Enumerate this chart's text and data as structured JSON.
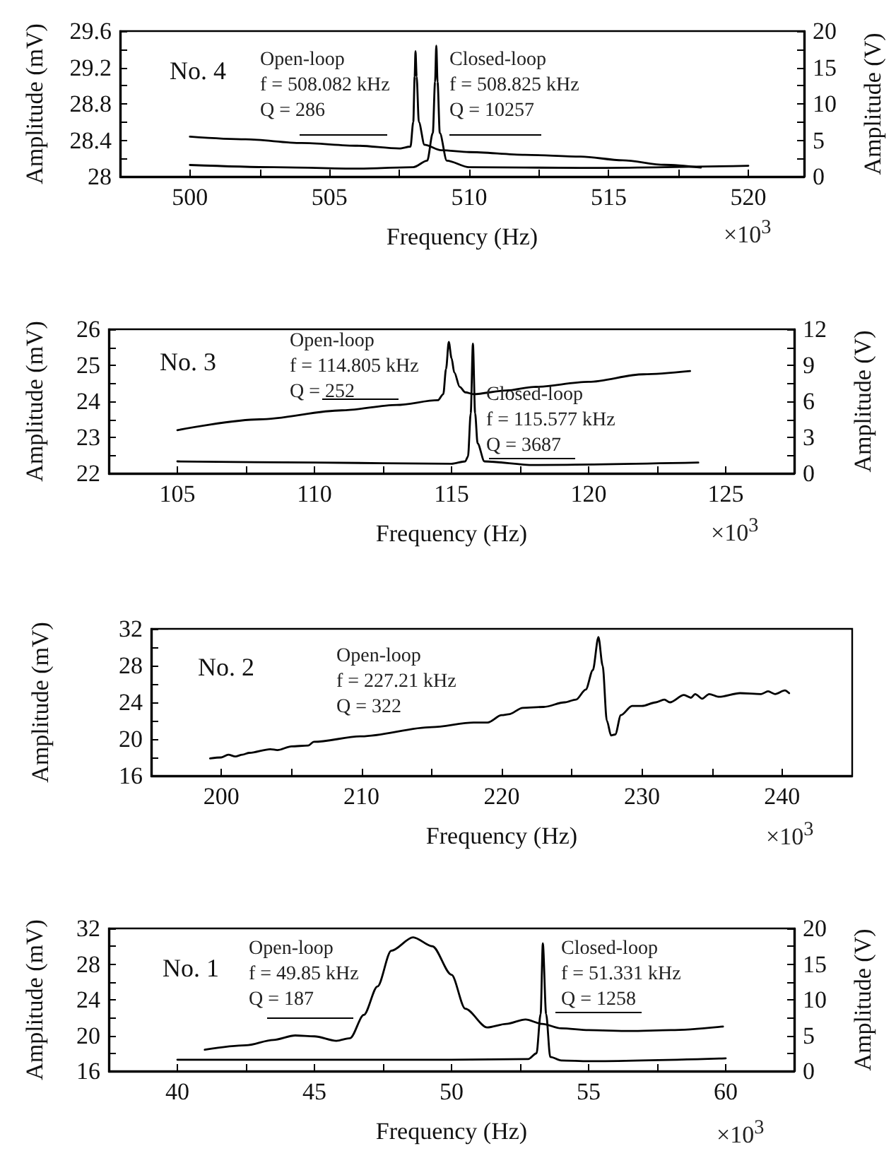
{
  "chart_data": [
    {
      "type": "line",
      "title": "No. 4",
      "xlabel": "Frequency (Hz)",
      "ylabel": "Amplitude (mV)",
      "y2label": "Amplitude (V)",
      "annotations": [
        "Open-loop\nf = 508.082 kHz\nQ = 286",
        "Closed-loop\nf = 508.825 kHz\nQ = 10257",
        "×10$^{3}$"
      ],
      "xlim": [
        497.5,
        522
      ],
      "xticks": [
        500,
        {
          "value": 502.5,
          "label": null
        },
        505,
        {
          "value": 507.5,
          "label": null
        },
        510,
        {
          "value": 512.5,
          "label": null
        },
        515,
        {
          "value": 517.5,
          "label": null
        },
        520
      ],
      "ylim": [
        28,
        29.6
      ],
      "yticks": [
        28,
        {
          "value": 28.2,
          "label": null
        },
        28.4,
        {
          "value": 28.6,
          "label": null
        },
        28.8,
        {
          "value": 29,
          "label": null
        },
        29.2,
        {
          "value": 29.4,
          "label": null
        },
        29.6
      ],
      "y2lim": [
        0,
        20
      ],
      "y2ticks": [
        0,
        {
          "value": 2.5,
          "label": null
        },
        5,
        {
          "value": 7.5,
          "label": null
        },
        10,
        {
          "value": 12.5,
          "label": null
        },
        15,
        {
          "value": 17.5,
          "label": null
        },
        20
      ],
      "series": [
        {
          "color": "#000000",
          "x": [
            500,
            502,
            504,
            506,
            507.5,
            507.9,
            508.0,
            508.05,
            508.08,
            508.12,
            508.2,
            508.4,
            509,
            510,
            512,
            514,
            515.5,
            517,
            518.3
          ],
          "values": [
            28.44,
            28.41,
            28.37,
            28.34,
            28.31,
            28.33,
            28.6,
            29.1,
            29.38,
            29.1,
            28.6,
            28.35,
            28.29,
            28.27,
            28.24,
            28.22,
            28.18,
            28.13,
            28.1
          ]
        },
        {
          "color": "#000000",
          "axis": "y2",
          "x": [
            500,
            503,
            506,
            508,
            508.5,
            508.7,
            508.78,
            508.825,
            508.87,
            508.95,
            509.2,
            510,
            514,
            520
          ],
          "values": [
            1.6,
            1.3,
            1.1,
            1.3,
            2.2,
            6,
            13,
            18,
            13,
            6,
            2.2,
            1.3,
            1.2,
            1.5
          ]
        }
      ]
    },
    {
      "type": "line",
      "title": "No. 3",
      "xlabel": "Frequency (Hz)",
      "ylabel": "Amplitude (mV)",
      "y2label": "Amplitude (V)",
      "annotations": [
        "Open-loop\nf = 114.805 kHz\nQ = 252",
        "Closed-loop\nf = 115.577 kHz\nQ = 3687",
        "×10$^{3}$"
      ],
      "xlim": [
        102.5,
        127.5
      ],
      "xticks": [
        105,
        {
          "value": 107.5,
          "label": null
        },
        110,
        {
          "value": 112.5,
          "label": null
        },
        115,
        {
          "value": 117.5,
          "label": null
        },
        120,
        {
          "value": 122.5,
          "label": null
        },
        125
      ],
      "ylim": [
        22,
        26
      ],
      "yticks": [
        22,
        {
          "value": 22.5,
          "label": null
        },
        23,
        {
          "value": 23.5,
          "label": null
        },
        24,
        {
          "value": 24.5,
          "label": null
        },
        25,
        {
          "value": 25.5,
          "label": null
        },
        26
      ],
      "y2lim": [
        0,
        12
      ],
      "y2ticks": [
        0,
        {
          "value": 1.5,
          "label": null
        },
        3,
        {
          "value": 4.5,
          "label": null
        },
        6,
        {
          "value": 7.5,
          "label": null
        },
        9,
        {
          "value": 10.5,
          "label": null
        },
        12
      ],
      "series": [
        {
          "color": "#000000",
          "x": [
            105,
            108,
            111,
            113,
            114.5,
            114.7,
            114.8,
            114.9,
            115.0,
            115.1,
            115.3,
            115.5,
            115.8,
            117,
            118,
            120,
            122,
            123.7
          ],
          "values": [
            23.2,
            23.5,
            23.75,
            23.9,
            24.03,
            24.2,
            24.9,
            25.65,
            25.2,
            24.8,
            24.4,
            24.25,
            24.2,
            24.3,
            24.4,
            24.54,
            24.75,
            24.84
          ]
        },
        {
          "color": "#000000",
          "axis": "y2",
          "x": [
            105,
            110,
            115,
            115.5,
            115.6,
            115.7,
            115.78,
            115.86,
            115.95,
            116.2,
            118,
            124
          ],
          "values": [
            1.0,
            0.9,
            0.8,
            1.0,
            1.4,
            5,
            10.8,
            5,
            2.5,
            1.0,
            0.7,
            0.9
          ]
        }
      ]
    },
    {
      "type": "line",
      "title": "No. 2",
      "xlabel": "Frequency (Hz)",
      "ylabel": "Amplitude (mV)",
      "annotations": [
        "Open-loop\nf = 227.21 kHz\nQ = 322",
        "×10$^{3}$"
      ],
      "xlim": [
        195,
        245
      ],
      "xticks": [
        200,
        {
          "value": 205,
          "label": null
        },
        210,
        {
          "value": 215,
          "label": null
        },
        220,
        {
          "value": 225,
          "label": null
        },
        230,
        {
          "value": 235,
          "label": null
        },
        240
      ],
      "ylim": [
        16,
        32
      ],
      "yticks": [
        16,
        {
          "value": 18,
          "label": null
        },
        20,
        {
          "value": 22,
          "label": null
        },
        24,
        {
          "value": 26,
          "label": null
        },
        28,
        {
          "value": 30,
          "label": null
        },
        32
      ],
      "series": [
        {
          "color": "#000000",
          "x": [
            199.2,
            200,
            200.5,
            201,
            201.5,
            202,
            203.5,
            204,
            205,
            206.2,
            206.6,
            210,
            215,
            218,
            219,
            220,
            220.5,
            221.5,
            223,
            224.5,
            225.3,
            226,
            226.5,
            226.9,
            227.2,
            227.5,
            227.8,
            228.1,
            228.5,
            229.3,
            230,
            231,
            231.6,
            232,
            233,
            233.5,
            233.8,
            234.3,
            234.8,
            235.5,
            237,
            238.5,
            239,
            239.5,
            240.2,
            240.5
          ],
          "values": [
            17.9,
            18.0,
            18.3,
            18.1,
            18.3,
            18.5,
            18.9,
            18.8,
            19.2,
            19.3,
            19.7,
            20.3,
            21.3,
            21.8,
            21.8,
            22.6,
            22.7,
            23.4,
            23.5,
            24.0,
            24.3,
            25.4,
            27.5,
            31.1,
            28,
            22,
            20.4,
            20.5,
            22.6,
            23.6,
            23.6,
            24.0,
            24.3,
            24.0,
            24.8,
            24.5,
            24.9,
            24.4,
            24.9,
            24.6,
            25.0,
            24.9,
            25.2,
            24.9,
            25.3,
            25.0
          ]
        }
      ]
    },
    {
      "type": "line",
      "title": "No. 1",
      "xlabel": "Frequency (Hz)",
      "ylabel": "Amplitude (mV)",
      "y2label": "Amplitude (V)",
      "annotations": [
        "Open-loop\nf = 49.85 kHz\nQ = 187",
        "Closed-loop\nf = 51.331 kHz\nQ = 1258",
        "×10$^{3}$"
      ],
      "xlim": [
        37.5,
        62.5
      ],
      "xticks": [
        40,
        {
          "value": 42.5,
          "label": null
        },
        45,
        {
          "value": 47.5,
          "label": null
        },
        50,
        {
          "value": 52.5,
          "label": null
        },
        55,
        {
          "value": 57.5,
          "label": null
        },
        60
      ],
      "ylim": [
        16,
        32
      ],
      "yticks": [
        16,
        {
          "value": 18,
          "label": null
        },
        20,
        {
          "value": 22,
          "label": null
        },
        24,
        {
          "value": 26,
          "label": null
        },
        28,
        {
          "value": 30,
          "label": null
        },
        32
      ],
      "y2lim": [
        0,
        20
      ],
      "y2ticks": [
        0,
        {
          "value": 2.5,
          "label": null
        },
        5,
        {
          "value": 7.5,
          "label": null
        },
        10,
        {
          "value": 12.5,
          "label": null
        },
        15,
        {
          "value": 17.5,
          "label": null
        },
        20
      ],
      "series": [
        {
          "color": "#000000",
          "x": [
            41,
            42.5,
            43.5,
            44.3,
            45,
            45.8,
            46.3,
            46.8,
            47.3,
            47.8,
            48.6,
            49.3,
            50,
            50.5,
            51.3,
            52,
            52.7,
            53.3,
            54,
            55,
            56.5,
            58,
            59.9
          ],
          "values": [
            18.4,
            18.9,
            19.5,
            20.0,
            19.9,
            19.4,
            19.7,
            22.3,
            25.5,
            29.5,
            31.0,
            30,
            26.8,
            23,
            20.9,
            21.3,
            21.8,
            21.3,
            20.8,
            20.6,
            20.5,
            20.6,
            21.0
          ]
        },
        {
          "color": "#000000",
          "axis": "y2",
          "x": [
            40,
            45,
            50,
            52.8,
            53.1,
            53.25,
            53.33,
            53.45,
            53.6,
            54,
            55,
            60
          ],
          "values": [
            1.6,
            1.6,
            1.6,
            1.7,
            2.5,
            8,
            17.9,
            8,
            2,
            1.5,
            1.4,
            1.8
          ]
        }
      ]
    }
  ]
}
